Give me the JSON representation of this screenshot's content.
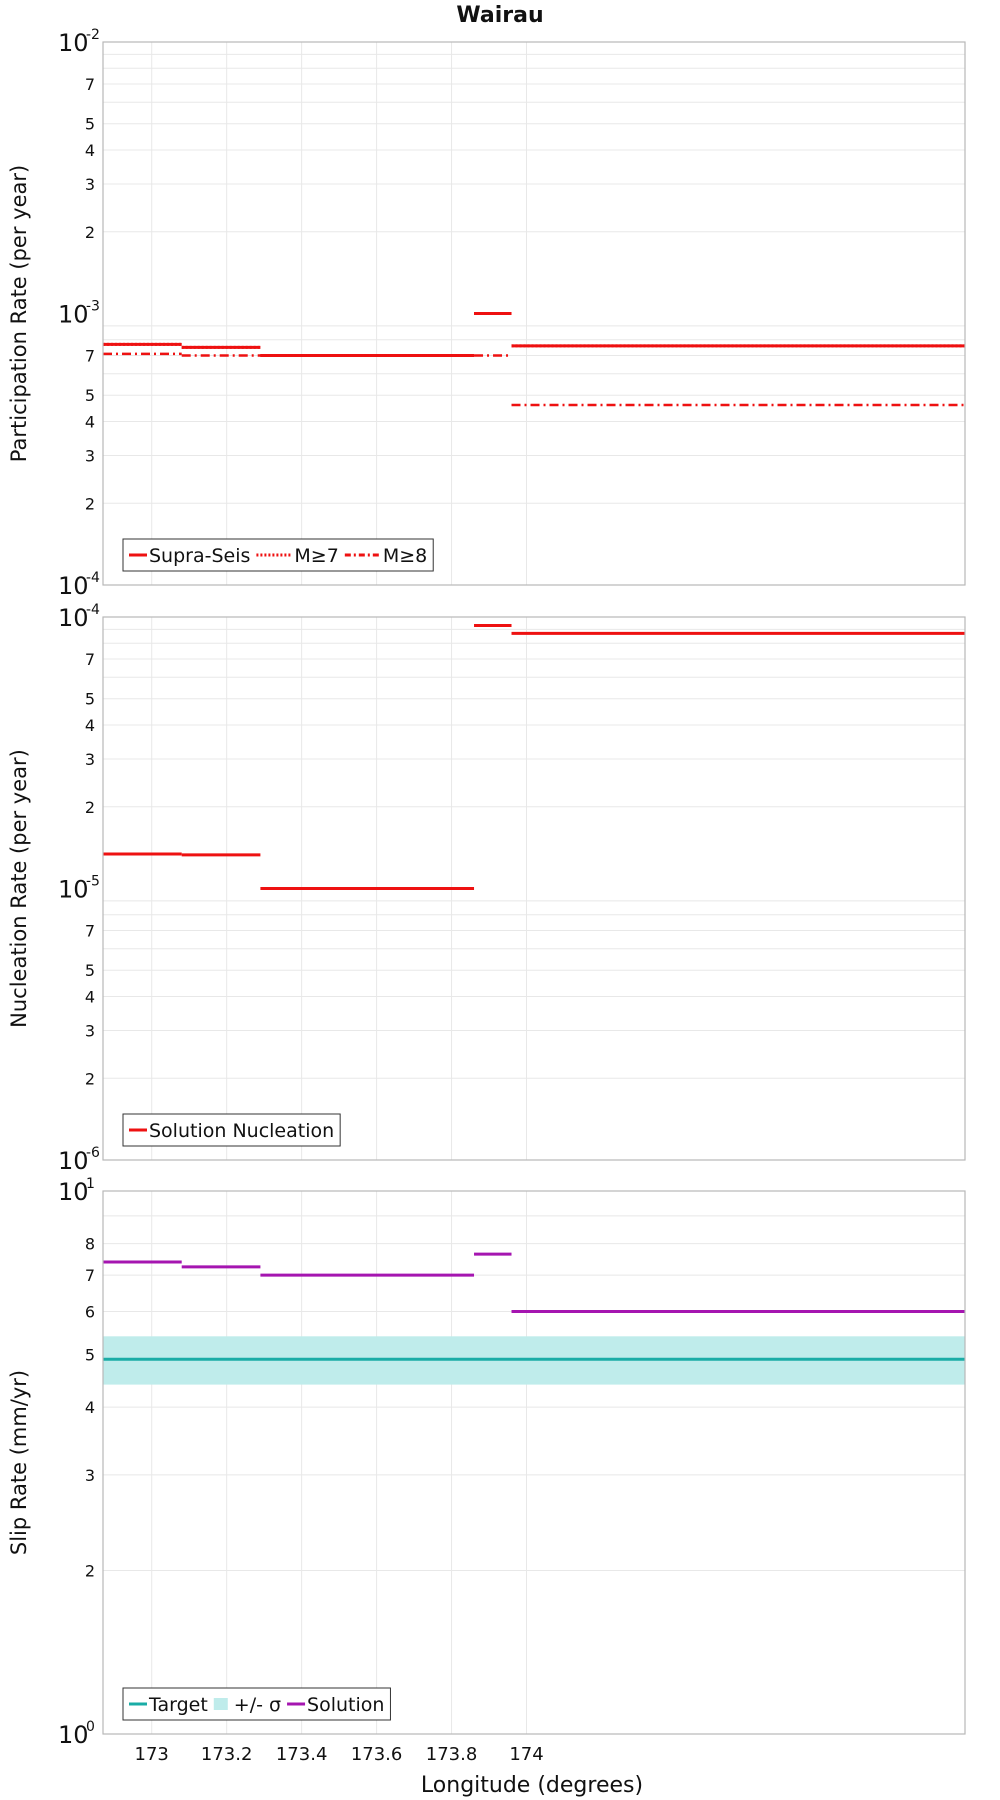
{
  "title": "Wairau",
  "xlabel": "Longitude (degrees)",
  "colors": {
    "red": "#ee1111",
    "teal": "#1aaca6",
    "band": "#bfeceb",
    "magenta": "#a515b0",
    "grid": "#e8e8e8",
    "frame": "#b8b8b8"
  },
  "chart_data": [
    {
      "type": "line",
      "ylabel": "Participation Rate (per year)",
      "yscale": "log",
      "ylim": [
        0.0001,
        0.01
      ],
      "xlim": [
        172.87,
        175.17
      ],
      "xticks": [
        "173",
        "173.2",
        "173.4",
        "173.6",
        "173.8",
        "174"
      ],
      "yticks": {
        "major": [
          {
            "base": "10",
            "exp": "-4"
          },
          {
            "base": "10",
            "exp": "-3"
          },
          {
            "base": "10",
            "exp": "-2"
          }
        ],
        "minor": [
          "2",
          "3",
          "4",
          "5",
          "7"
        ]
      },
      "legend": {
        "position": "bottom-left",
        "entries": [
          "Supra-Seis",
          "M≥7",
          "M≥8"
        ]
      },
      "series": [
        {
          "name": "Supra-Seis",
          "style": "solid",
          "segments": [
            {
              "x0": 172.87,
              "x1": 173.08,
              "y": 0.00077
            },
            {
              "x0": 173.08,
              "x1": 173.29,
              "y": 0.00075
            },
            {
              "x0": 173.29,
              "x1": 173.86,
              "y": 0.0007
            },
            {
              "x0": 173.86,
              "x1": 173.96,
              "y": 0.001
            },
            {
              "x0": 173.96,
              "x1": 175.17,
              "y": 0.00076
            }
          ]
        },
        {
          "name": "M≥7",
          "style": "dotted",
          "segments": [
            {
              "x0": 172.87,
              "x1": 173.08,
              "y": 0.00077
            },
            {
              "x0": 173.08,
              "x1": 173.29,
              "y": 0.00075
            },
            {
              "x0": 173.29,
              "x1": 173.86,
              "y": 0.0007
            },
            {
              "x0": 173.86,
              "x1": 173.96,
              "y": 0.001
            },
            {
              "x0": 173.96,
              "x1": 175.17,
              "y": 0.00076
            }
          ]
        },
        {
          "name": "M≥8",
          "style": "dashdot",
          "segments": [
            {
              "x0": 172.87,
              "x1": 173.08,
              "y": 0.00071
            },
            {
              "x0": 173.08,
              "x1": 173.86,
              "y": 0.0007
            },
            {
              "x0": 173.86,
              "x1": 173.96,
              "y": 0.0007
            },
            {
              "x0": 173.96,
              "x1": 175.17,
              "y": 0.00046
            }
          ]
        }
      ]
    },
    {
      "type": "line",
      "ylabel": "Nucleation Rate (per year)",
      "yscale": "log",
      "ylim": [
        1e-06,
        0.0001
      ],
      "xlim": [
        172.87,
        175.17
      ],
      "xticks": [
        "173",
        "173.2",
        "173.4",
        "173.6",
        "173.8",
        "174"
      ],
      "yticks": {
        "major": [
          {
            "base": "10",
            "exp": "-6"
          },
          {
            "base": "10",
            "exp": "-5"
          },
          {
            "base": "10",
            "exp": "-4"
          }
        ],
        "minor": [
          "2",
          "3",
          "4",
          "5",
          "7"
        ]
      },
      "legend": {
        "position": "bottom-left",
        "entries": [
          "Solution Nucleation"
        ]
      },
      "series": [
        {
          "name": "Solution Nucleation",
          "style": "solid",
          "segments": [
            {
              "x0": 172.87,
              "x1": 173.08,
              "y": 1.34e-05
            },
            {
              "x0": 173.08,
              "x1": 173.29,
              "y": 1.33e-05
            },
            {
              "x0": 173.29,
              "x1": 173.86,
              "y": 1e-05
            },
            {
              "x0": 173.86,
              "x1": 173.96,
              "y": 9.3e-05
            },
            {
              "x0": 173.96,
              "x1": 175.17,
              "y": 8.7e-05
            }
          ]
        }
      ]
    },
    {
      "type": "line",
      "ylabel": "Slip Rate (mm/yr)",
      "yscale": "log",
      "ylim": [
        1,
        10
      ],
      "xlim": [
        172.87,
        175.17
      ],
      "xticks": [
        "173",
        "173.2",
        "173.4",
        "173.6",
        "173.8",
        "174"
      ],
      "yticks": {
        "major": [
          {
            "base": "10",
            "exp": "0"
          },
          {
            "base": "10",
            "exp": "1"
          }
        ],
        "minor": [
          "2",
          "3",
          "4",
          "5",
          "6",
          "7",
          "8"
        ]
      },
      "legend": {
        "position": "bottom-left",
        "entries": [
          "Target",
          "+/- σ",
          "Solution"
        ]
      },
      "band": {
        "name": "+/- σ",
        "low": 4.4,
        "high": 5.4
      },
      "series": [
        {
          "name": "Target",
          "style": "solid",
          "segments": [
            {
              "x0": 172.87,
              "x1": 175.17,
              "y": 4.9
            }
          ]
        },
        {
          "name": "Solution",
          "style": "solid",
          "segments": [
            {
              "x0": 172.87,
              "x1": 173.08,
              "y": 7.4
            },
            {
              "x0": 173.08,
              "x1": 173.29,
              "y": 7.25
            },
            {
              "x0": 173.29,
              "x1": 173.86,
              "y": 7.0
            },
            {
              "x0": 173.86,
              "x1": 173.96,
              "y": 7.65
            },
            {
              "x0": 173.96,
              "x1": 175.17,
              "y": 6.0
            }
          ]
        }
      ]
    }
  ]
}
